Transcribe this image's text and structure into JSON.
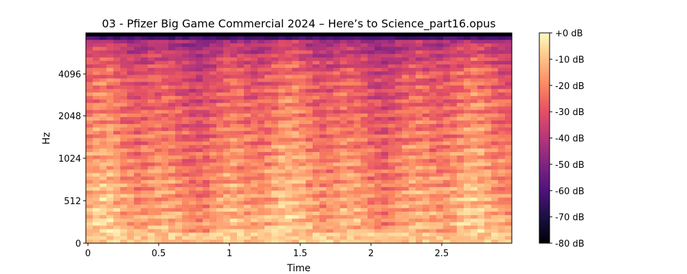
{
  "chart_data": {
    "type": "heatmap",
    "title": "03 - Pfizer Big Game Commercial 2024 – Here’s to Science_part16.opus",
    "xlabel": "Time",
    "ylabel": "Hz",
    "x_range": [
      0,
      3.0
    ],
    "x_ticks": [
      0,
      0.5,
      1,
      1.5,
      2,
      2.5
    ],
    "x_tick_labels": [
      "0",
      "0.5",
      "1",
      "1.5",
      "2",
      "2.5"
    ],
    "y_scale": "log2-mel",
    "y_ticks": [
      0,
      512,
      1024,
      2048,
      4096
    ],
    "y_tick_labels": [
      "0",
      "512",
      "1024",
      "2048",
      "4096"
    ],
    "colormap": "magma",
    "colorbar": {
      "range_db": [
        -80,
        0
      ],
      "ticks": [
        0,
        -10,
        -20,
        -30,
        -40,
        -50,
        -60,
        -70,
        -80
      ],
      "tick_labels": [
        "+0 dB",
        "-10 dB",
        "-20 dB",
        "-30 dB",
        "-40 dB",
        "-50 dB",
        "-60 dB",
        "-70 dB",
        "-80 dB"
      ]
    },
    "grid": false,
    "description_of_values": "Spectrogram magnitude in dB; high energy (near 0 dB) at low frequencies, decreasing toward -50 to -60 dB at the top band"
  }
}
